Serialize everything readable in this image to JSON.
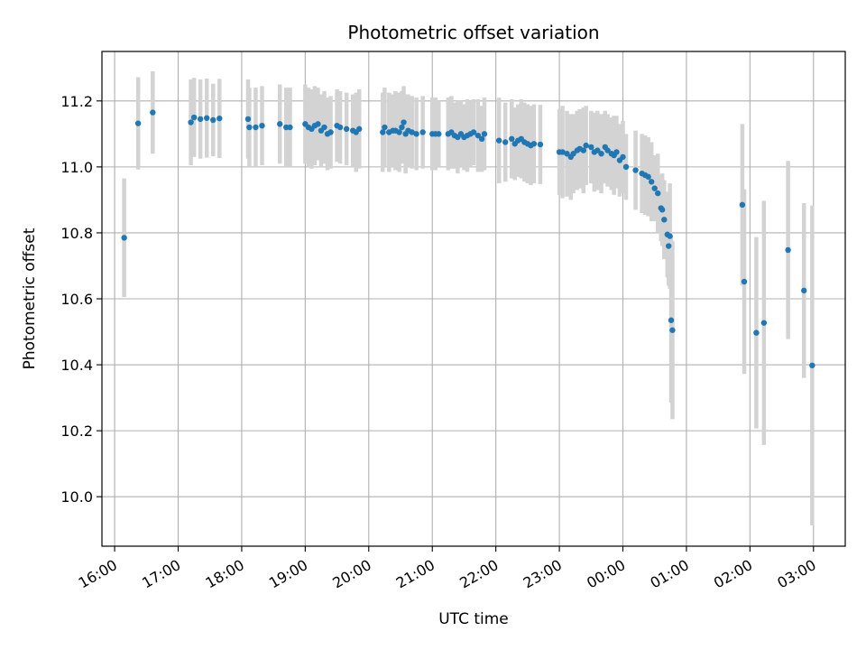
{
  "chart_data": {
    "type": "scatter",
    "title": "Photometric offset variation",
    "xlabel": "UTC time",
    "ylabel": "Photometric offset",
    "x_tick_labels": [
      "16:00",
      "17:00",
      "18:00",
      "19:00",
      "20:00",
      "21:00",
      "22:00",
      "23:00",
      "00:00",
      "01:00",
      "02:00",
      "03:00"
    ],
    "y_ticks": [
      10.0,
      10.2,
      10.4,
      10.6,
      10.8,
      11.0,
      11.2
    ],
    "y_tick_labels": [
      "10.0",
      "10.2",
      "10.4",
      "10.6",
      "10.8",
      "11.0",
      "11.2"
    ],
    "xlim_hours": [
      15.8,
      27.5
    ],
    "ylim": [
      9.85,
      11.35
    ],
    "grid": true,
    "colors": {
      "marker": "#1f77b4",
      "errorbar": "#d3d3d3",
      "grid": "#b0b0b0"
    },
    "series": [
      {
        "hours": [
          16.15,
          16.37,
          16.6,
          17.2,
          17.25,
          17.35,
          17.45,
          17.55,
          17.65,
          18.1,
          18.12,
          18.22,
          18.32,
          18.6,
          18.7,
          18.76,
          19.0,
          19.05,
          19.1,
          19.15,
          19.2,
          19.25,
          19.3,
          19.35,
          19.4,
          19.5,
          19.55,
          19.65,
          19.75,
          19.8,
          19.85,
          20.22,
          20.25,
          20.32,
          20.38,
          20.42,
          20.48,
          20.52,
          20.55,
          20.58,
          20.62,
          20.68,
          20.75,
          20.85,
          21.0,
          21.05,
          21.1,
          21.25,
          21.3,
          21.35,
          21.4,
          21.45,
          21.5,
          21.55,
          21.6,
          21.65,
          21.72,
          21.78,
          21.82,
          22.05,
          22.15,
          22.25,
          22.3,
          22.35,
          22.4,
          22.45,
          22.5,
          22.55,
          22.6,
          22.7,
          23.0,
          23.05,
          23.12,
          23.18,
          23.22,
          23.28,
          23.32,
          23.38,
          23.42,
          23.5,
          23.55,
          23.6,
          23.66,
          23.72,
          23.76,
          23.82,
          23.86,
          23.9,
          23.95,
          24.0,
          24.05,
          24.2,
          24.3,
          24.35,
          24.4,
          24.45,
          24.5,
          24.55,
          24.6,
          24.62,
          24.65,
          24.7,
          24.72,
          24.74,
          24.76,
          24.78
        ],
        "values": [
          10.785,
          11.132,
          11.165,
          11.135,
          11.15,
          11.145,
          11.148,
          11.142,
          11.147,
          11.145,
          11.12,
          11.12,
          11.125,
          11.13,
          11.12,
          11.12,
          11.13,
          11.12,
          11.115,
          11.125,
          11.13,
          11.11,
          11.12,
          11.1,
          11.105,
          11.125,
          11.12,
          11.115,
          11.11,
          11.105,
          11.115,
          11.105,
          11.12,
          11.105,
          11.11,
          11.11,
          11.105,
          11.12,
          11.135,
          11.1,
          11.11,
          11.105,
          11.1,
          11.105,
          11.1,
          11.1,
          11.1,
          11.1,
          11.105,
          11.095,
          11.09,
          11.1,
          11.09,
          11.095,
          11.1,
          11.105,
          11.095,
          11.085,
          11.1,
          11.08,
          11.075,
          11.085,
          11.07,
          11.08,
          11.085,
          11.075,
          11.07,
          11.065,
          11.07,
          11.068,
          11.045,
          11.045,
          11.04,
          11.03,
          11.04,
          11.05,
          11.055,
          11.05,
          11.065,
          11.06,
          11.045,
          11.05,
          11.04,
          11.06,
          11.05,
          11.04,
          11.035,
          11.045,
          11.02,
          11.03,
          11.0,
          10.99,
          10.98,
          10.975,
          10.97,
          10.955,
          10.935,
          10.92,
          10.875,
          10.87,
          10.84,
          10.795,
          10.76,
          10.79,
          10.535,
          10.505
        ],
        "errors": [
          0.18,
          0.14,
          0.125,
          0.13,
          0.12,
          0.12,
          0.12,
          0.11,
          0.12,
          0.12,
          0.12,
          0.12,
          0.12,
          0.12,
          0.12,
          0.12,
          0.12,
          0.12,
          0.12,
          0.12,
          0.11,
          0.11,
          0.11,
          0.11,
          0.11,
          0.11,
          0.11,
          0.11,
          0.11,
          0.12,
          0.12,
          0.12,
          0.12,
          0.12,
          0.11,
          0.12,
          0.12,
          0.11,
          0.11,
          0.12,
          0.11,
          0.11,
          0.11,
          0.11,
          0.11,
          0.11,
          0.1,
          0.11,
          0.11,
          0.1,
          0.11,
          0.1,
          0.1,
          0.11,
          0.1,
          0.1,
          0.11,
          0.1,
          0.11,
          0.13,
          0.12,
          0.12,
          0.11,
          0.11,
          0.12,
          0.12,
          0.12,
          0.12,
          0.12,
          0.12,
          0.13,
          0.14,
          0.13,
          0.13,
          0.12,
          0.12,
          0.12,
          0.13,
          0.12,
          0.11,
          0.12,
          0.12,
          0.12,
          0.11,
          0.11,
          0.11,
          0.12,
          0.11,
          0.11,
          0.11,
          0.1,
          0.12,
          0.12,
          0.12,
          0.12,
          0.12,
          0.1,
          0.12,
          0.1,
          0.11,
          0.12,
          0.13,
          0.12,
          0.16,
          0.25,
          0.27
        ]
      },
      {
        "hours": [
          25.88,
          25.91,
          26.1,
          26.22,
          26.6,
          26.85,
          26.98
        ],
        "values": [
          10.885,
          10.652,
          10.497,
          10.527,
          10.748,
          10.625,
          10.398
        ],
        "errors": [
          0.245,
          0.28,
          0.29,
          0.37,
          0.27,
          0.265,
          0.485
        ]
      }
    ]
  }
}
